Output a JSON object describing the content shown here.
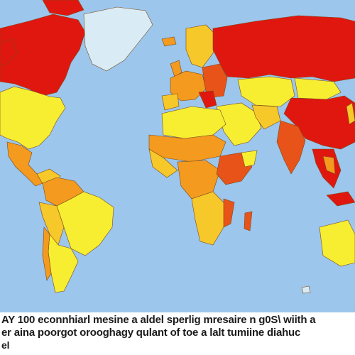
{
  "map": {
    "colors": {
      "ocean": "#9cc6ec",
      "red": "#e0170f",
      "orange_red": "#e8531a",
      "orange": "#f39a1f",
      "yellow_orange": "#f7c82a",
      "yellow": "#f7ee32",
      "ice": "#d9ecf6"
    },
    "labels": {
      "greenland_label": "",
      "russia_label": ""
    }
  },
  "caption": {
    "line1": "AY 100 econnhiarl mesine a aldel sperlig mresaire n g0S\\ wiith a",
    "line2": "er aina poorgot orooghagy qulant of toe a lalt tumiine diahuc",
    "line3": "el"
  }
}
